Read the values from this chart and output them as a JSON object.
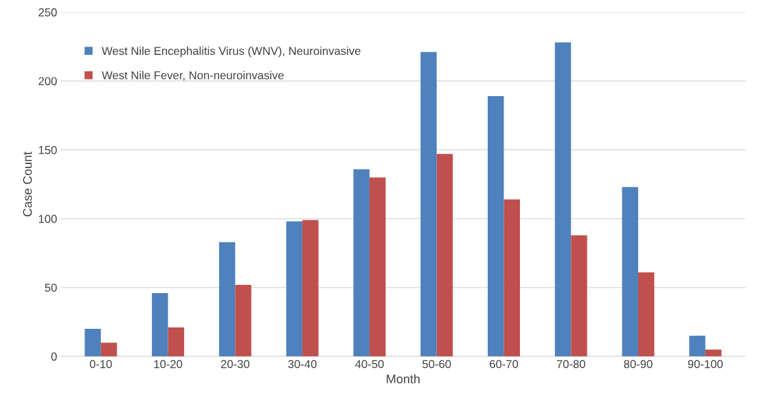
{
  "chart_data": {
    "type": "bar",
    "xlabel": "Month",
    "ylabel": "Case Count",
    "categories": [
      "0-10",
      "10-20",
      "20-30",
      "30-40",
      "40-50",
      "50-60",
      "60-70",
      "70-80",
      "80-90",
      "90-100"
    ],
    "series": [
      {
        "name": "West Nile Encephalitis Virus (WNV), Neuroinvasive",
        "color": "#4f81bd",
        "values": [
          20,
          46,
          83,
          98,
          136,
          221,
          189,
          228,
          123,
          15
        ]
      },
      {
        "name": "West Nile Fever, Non-neuroinvasive",
        "color": "#c0504d",
        "values": [
          10,
          21,
          52,
          99,
          130,
          147,
          114,
          88,
          61,
          5
        ]
      }
    ],
    "ylim": [
      0,
      250
    ],
    "yticks": [
      0,
      50,
      100,
      150,
      200,
      250
    ],
    "grid": "y",
    "legend": "top left"
  }
}
